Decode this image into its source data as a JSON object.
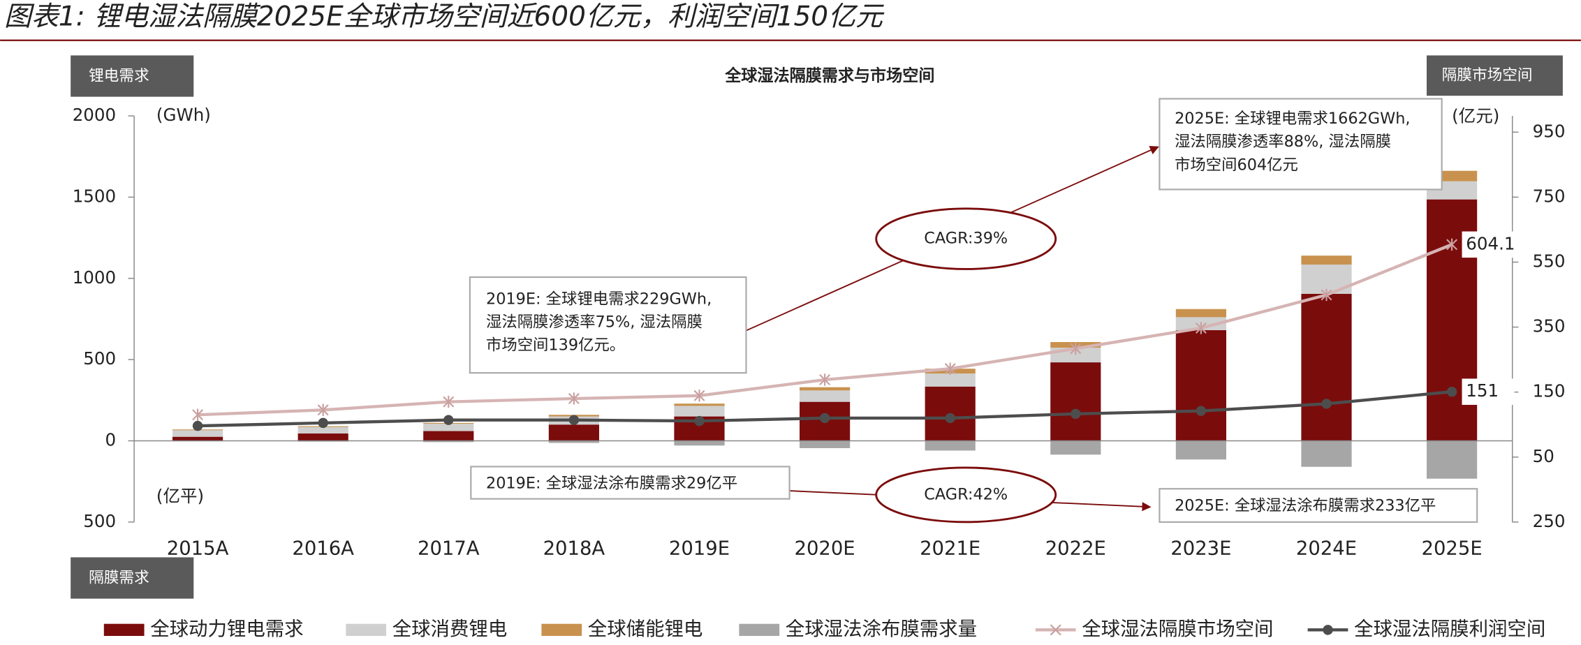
{
  "chart_data": {
    "type": "combo",
    "title": "图表1: 锂电湿法隔膜2025E全球市场空间近600亿元，利润空间150亿元",
    "subtitle": "全球湿法隔膜需求与市场空间",
    "panel_labels": [
      "锂电需求",
      "隔膜市场空间",
      "隔膜需求"
    ],
    "y_unit": "(GWh)",
    "y_unit_lower": "(亿平)",
    "y2_unit": "(亿元)",
    "categories": [
      "2015A",
      "2016A",
      "2017A",
      "2018A",
      "2019E",
      "2020E",
      "2021E",
      "2022E",
      "2023E",
      "2024E",
      "2025E"
    ],
    "series": [
      {
        "name": "全球动力锂电需求",
        "type": "bar",
        "color": "#7b0c0c",
        "values": [
          25,
          45,
          60,
          100,
          150,
          240,
          334,
          483,
          681,
          905,
          1486
        ]
      },
      {
        "name": "全球消费锂电",
        "type": "bar",
        "color": "#d0d0d0",
        "values": [
          40,
          40,
          45,
          50,
          65,
          70,
          80,
          90,
          80,
          180,
          112
        ]
      },
      {
        "name": "全球储能锂电",
        "type": "bar",
        "color": "#c8924e",
        "values": [
          5,
          5,
          5,
          10,
          14,
          20,
          30,
          35,
          50,
          55,
          64
        ]
      },
      {
        "name": "全球湿法涂布膜需求量",
        "type": "bar",
        "color": "#a6a6a6",
        "values": [
          -3,
          -5,
          -8,
          -13,
          -29,
          -45,
          -60,
          -85,
          -115,
          -160,
          -233
        ]
      },
      {
        "name": "全球湿法隔膜市场空间",
        "type": "line",
        "axis": "y2",
        "color": "#d6b4b4",
        "marker": "x",
        "values": [
          80,
          95,
          120,
          130,
          139,
          188,
          222,
          284,
          347,
          449,
          604.1
        ],
        "value_labels": [
          null,
          null,
          null,
          null,
          null,
          null,
          null,
          null,
          null,
          null,
          "604.1"
        ]
      },
      {
        "name": "全球湿法隔膜利润空间",
        "type": "line",
        "axis": "y2",
        "color": "#4d4d4d",
        "marker": "dot",
        "values": [
          46,
          55,
          64,
          64,
          61,
          70,
          70,
          83,
          92,
          114,
          151
        ],
        "value_labels": [
          null,
          null,
          null,
          null,
          null,
          null,
          null,
          null,
          null,
          null,
          "151"
        ]
      }
    ],
    "ylim": [
      -500,
      2000
    ],
    "yticks": [
      {
        "value": -500,
        "label": "500"
      },
      0,
      500,
      1000,
      1500,
      2000
    ],
    "y2lim": [
      -250,
      1000
    ],
    "y2ticks": [
      {
        "value": -250,
        "label": "250"
      },
      {
        "value": -50,
        "label": "50"
      },
      150,
      350,
      550,
      750,
      950
    ],
    "annotations": [
      {
        "lines": [
          "2025E:  全球锂电需求1662GWh,",
          "湿法隔膜渗透率88%,  湿法隔膜",
          "市场空间604亿元"
        ]
      },
      {
        "lines": [
          "2019E:  全球锂电需求229GWh,",
          "湿法隔膜渗透率75%,  湿法隔膜",
          "市场空间139亿元。"
        ]
      },
      {
        "lines": [
          "2019E:  全球湿法涂布膜需求29亿平"
        ]
      },
      {
        "lines": [
          "2025E:  全球湿法涂布膜需求233亿平"
        ]
      },
      {
        "lines": [
          "CAGR:39%"
        ]
      },
      {
        "lines": [
          "CAGR:42%"
        ]
      }
    ]
  }
}
